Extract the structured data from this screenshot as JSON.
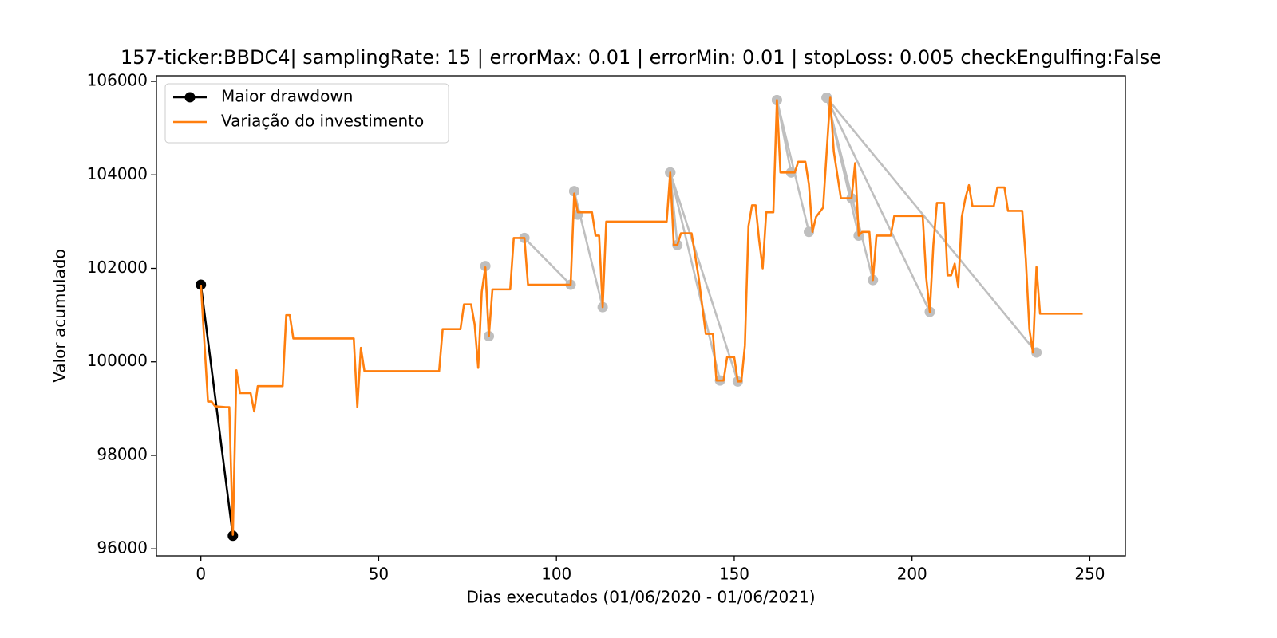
{
  "chart_data": {
    "type": "line",
    "title": "157-ticker:BBDC4| samplingRate: 15 | errorMax: 0.01 | errorMin: 0.01 | stopLoss: 0.005 checkEngulfing:False",
    "x_label": "Dias executados (01/06/2020 - 01/06/2021)",
    "y_label": "Valor acumulado",
    "xlim": [
      -12.5,
      260
    ],
    "ylim": [
      95850,
      106120
    ],
    "xticks": [
      0,
      50,
      100,
      150,
      200,
      250
    ],
    "yticks": [
      96000,
      98000,
      100000,
      102000,
      104000,
      106000
    ],
    "legend": "upper left",
    "series": [
      {
        "color": "#bfbfbf",
        "markers": true,
        "x": [
          80,
          81,
          null,
          91,
          104,
          null,
          105,
          106,
          null,
          105,
          113,
          null,
          132,
          134,
          null,
          132,
          146,
          null,
          132,
          151,
          null,
          162,
          166,
          null,
          162,
          171,
          null,
          176,
          183,
          null,
          176,
          185,
          null,
          176,
          189,
          null,
          176,
          205,
          null,
          176,
          235
        ],
        "values": [
          102050,
          100550,
          null,
          102650,
          101650,
          null,
          103650,
          103150,
          null,
          103650,
          101170,
          null,
          104050,
          102500,
          null,
          104050,
          99600,
          null,
          104050,
          99580,
          null,
          105600,
          104050,
          null,
          105600,
          102780,
          null,
          105650,
          103500,
          null,
          105650,
          102700,
          null,
          105650,
          101750,
          null,
          105650,
          101070,
          null,
          105650,
          100200
        ]
      },
      {
        "name": "Maior drawdown",
        "color": "#000000",
        "markers": true,
        "x": [
          0,
          9
        ],
        "values": [
          101650,
          96280
        ]
      },
      {
        "name": "Variação do investimento",
        "color": "#ff7f0e",
        "markers": false,
        "x": [
          0,
          2,
          3,
          4,
          7,
          8,
          9,
          10,
          11,
          14,
          15,
          16,
          23,
          24,
          25,
          26,
          43,
          44,
          45,
          46,
          67,
          68,
          73,
          74,
          76,
          77,
          78,
          79,
          80,
          81,
          82,
          87,
          88,
          91,
          92,
          104,
          105,
          106,
          107,
          110,
          111,
          112,
          113,
          114,
          131,
          132,
          133,
          134,
          135,
          138,
          140,
          142,
          144,
          145,
          147,
          148,
          150,
          151,
          152,
          153,
          154,
          155,
          156,
          157,
          158,
          159,
          161,
          162,
          163,
          167,
          168,
          170,
          171,
          172,
          173,
          175,
          176,
          177,
          178,
          180,
          183,
          184,
          185,
          186,
          188,
          189,
          190,
          194,
          195,
          203,
          204,
          205,
          206,
          207,
          209,
          210,
          211,
          212,
          213,
          214,
          215,
          216,
          217,
          223,
          224,
          226,
          227,
          231,
          232,
          233,
          234,
          235,
          236,
          248
        ],
        "values": [
          101650,
          99150,
          99150,
          99050,
          99030,
          99030,
          96300,
          99820,
          99330,
          99330,
          98940,
          99480,
          99480,
          101000,
          101000,
          100500,
          100500,
          99030,
          100300,
          99800,
          99800,
          100700,
          100700,
          101230,
          101230,
          100800,
          99870,
          101500,
          102020,
          100550,
          101550,
          101550,
          102650,
          102650,
          101650,
          101650,
          103600,
          103200,
          103200,
          103200,
          102700,
          102700,
          101170,
          103000,
          103000,
          104050,
          102500,
          102500,
          102750,
          102750,
          101800,
          100600,
          100600,
          99600,
          99600,
          100100,
          100100,
          99580,
          99580,
          100350,
          102900,
          103350,
          103350,
          102600,
          102000,
          103200,
          103200,
          105600,
          104050,
          104050,
          104280,
          104280,
          103800,
          102780,
          103100,
          103300,
          104500,
          105650,
          104500,
          103500,
          103500,
          104250,
          102700,
          102780,
          102780,
          101750,
          102700,
          102700,
          103120,
          103120,
          101800,
          101070,
          102500,
          103400,
          103400,
          101850,
          101850,
          102100,
          101600,
          103100,
          103500,
          103780,
          103330,
          103330,
          103730,
          103730,
          103230,
          103230,
          102200,
          100700,
          100200,
          102030,
          101030,
          101030
        ]
      }
    ]
  }
}
